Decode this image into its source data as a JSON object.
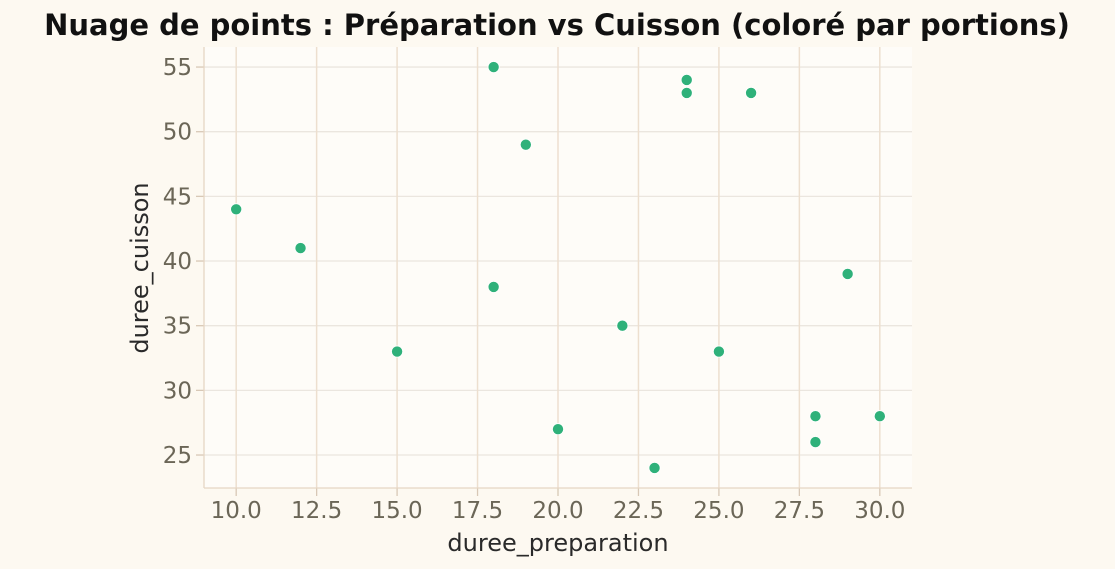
{
  "chart_data": {
    "type": "scatter",
    "title": "Nuage de points : Préparation vs Cuisson (coloré par portions)",
    "xlabel": "duree_preparation",
    "ylabel": "duree_cuisson",
    "xlim": [
      9.0,
      31.0
    ],
    "ylim": [
      22.45,
      56.55
    ],
    "xticks": [
      "10.0",
      "12.5",
      "15.0",
      "17.5",
      "20.0",
      "22.5",
      "25.0",
      "27.5",
      "30.0"
    ],
    "yticks": [
      "25",
      "30",
      "35",
      "40",
      "45",
      "50",
      "55"
    ],
    "grid": true,
    "point_color": "#2fb17a",
    "background_color": "#fdf9f1",
    "plot_background_color": "#fefcf8",
    "points": [
      {
        "x": 10,
        "y": 44
      },
      {
        "x": 12,
        "y": 41
      },
      {
        "x": 15,
        "y": 33
      },
      {
        "x": 18,
        "y": 55
      },
      {
        "x": 18,
        "y": 38
      },
      {
        "x": 19,
        "y": 49
      },
      {
        "x": 20,
        "y": 27
      },
      {
        "x": 22,
        "y": 35
      },
      {
        "x": 23,
        "y": 24
      },
      {
        "x": 24,
        "y": 54
      },
      {
        "x": 24,
        "y": 53
      },
      {
        "x": 25,
        "y": 33
      },
      {
        "x": 26,
        "y": 53
      },
      {
        "x": 28,
        "y": 28
      },
      {
        "x": 28,
        "y": 26
      },
      {
        "x": 29,
        "y": 39
      },
      {
        "x": 30,
        "y": 28
      }
    ]
  }
}
